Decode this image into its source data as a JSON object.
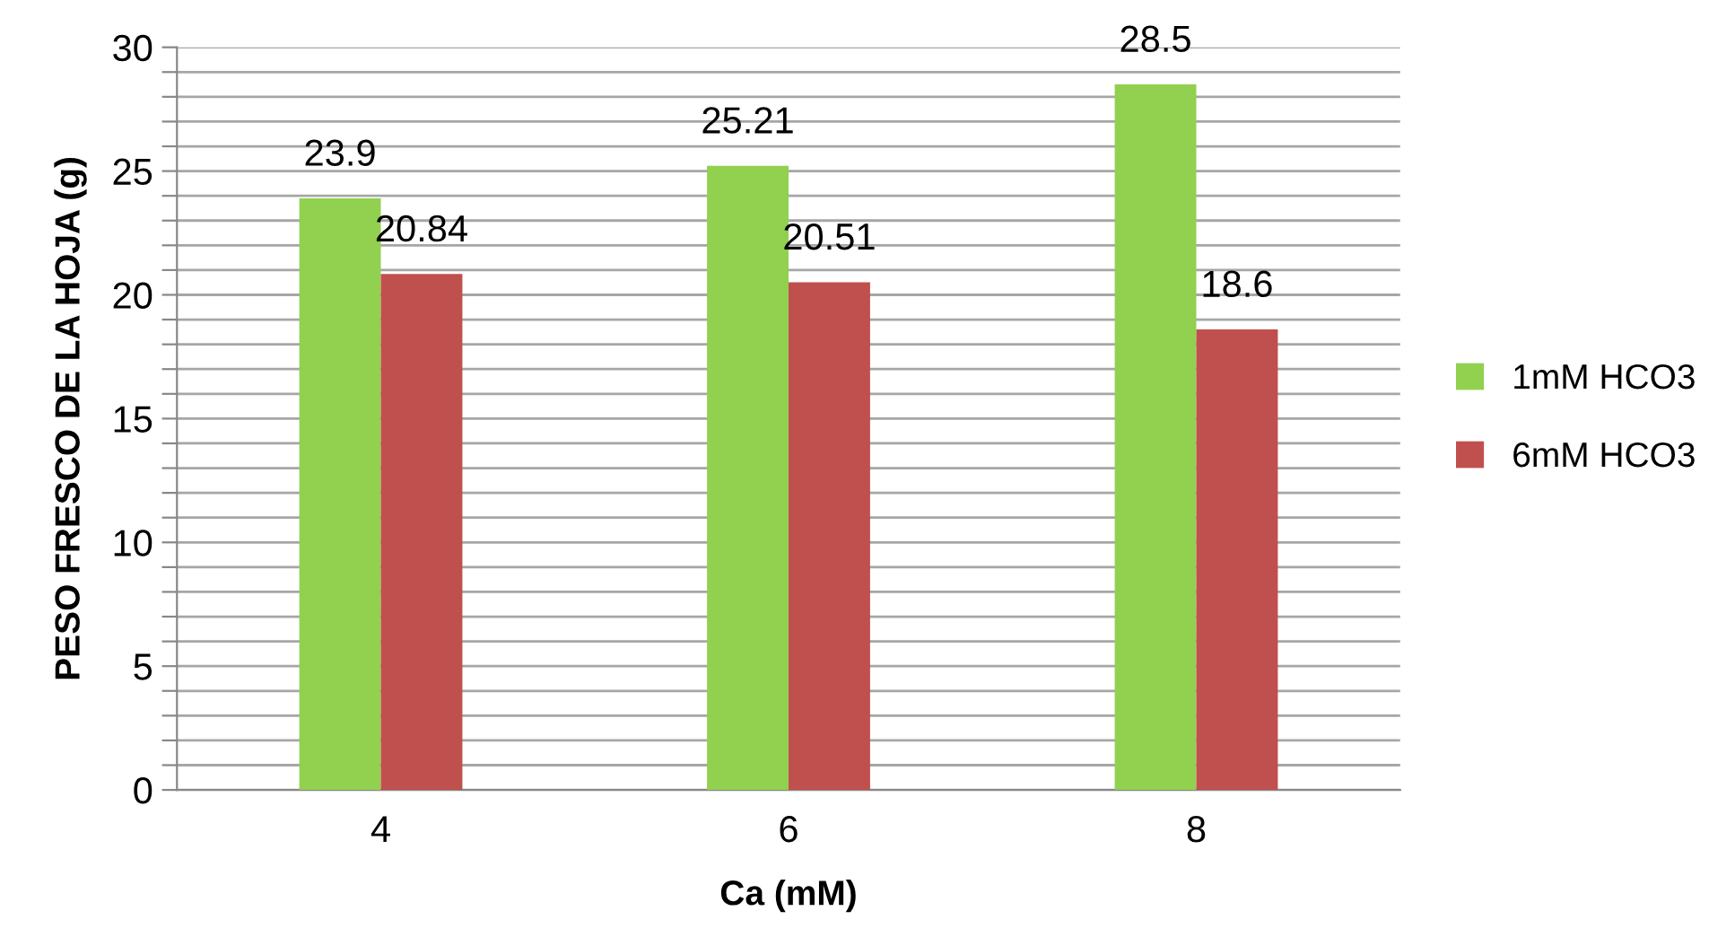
{
  "chart_data": {
    "type": "bar",
    "xlabel": "Ca (mM)",
    "ylabel": "PESO FRESCO DE LA HOJA (g)",
    "categories": [
      "4",
      "6",
      "8"
    ],
    "series": [
      {
        "name": "1mM HCO3",
        "color": "#92d050",
        "values": [
          23.9,
          25.21,
          28.5
        ]
      },
      {
        "name": "6mM HCO3",
        "color": "#c0504d",
        "values": [
          20.84,
          20.51,
          18.6
        ]
      }
    ],
    "ylim": [
      0,
      30
    ],
    "yticks": [
      0,
      {
        "value": 1,
        "label": null
      },
      {
        "value": 2,
        "label": null
      },
      {
        "value": 3,
        "label": null
      },
      {
        "value": 4,
        "label": null
      },
      5,
      {
        "value": 6,
        "label": null
      },
      {
        "value": 7,
        "label": null
      },
      {
        "value": 8,
        "label": null
      },
      {
        "value": 9,
        "label": null
      },
      10,
      {
        "value": 11,
        "label": null
      },
      {
        "value": 12,
        "label": null
      },
      {
        "value": 13,
        "label": null
      },
      {
        "value": 14,
        "label": null
      },
      15,
      {
        "value": 16,
        "label": null
      },
      {
        "value": 17,
        "label": null
      },
      {
        "value": 18,
        "label": null
      },
      {
        "value": 19,
        "label": null
      },
      20,
      {
        "value": 21,
        "label": null
      },
      {
        "value": 22,
        "label": null
      },
      {
        "value": 23,
        "label": null
      },
      {
        "value": 24,
        "label": null
      },
      25,
      {
        "value": 26,
        "label": null
      },
      {
        "value": 27,
        "label": null
      },
      {
        "value": 28,
        "label": null
      },
      {
        "value": 29,
        "label": null
      },
      30
    ],
    "grid": "y",
    "legend": "right",
    "data_labels": true
  }
}
